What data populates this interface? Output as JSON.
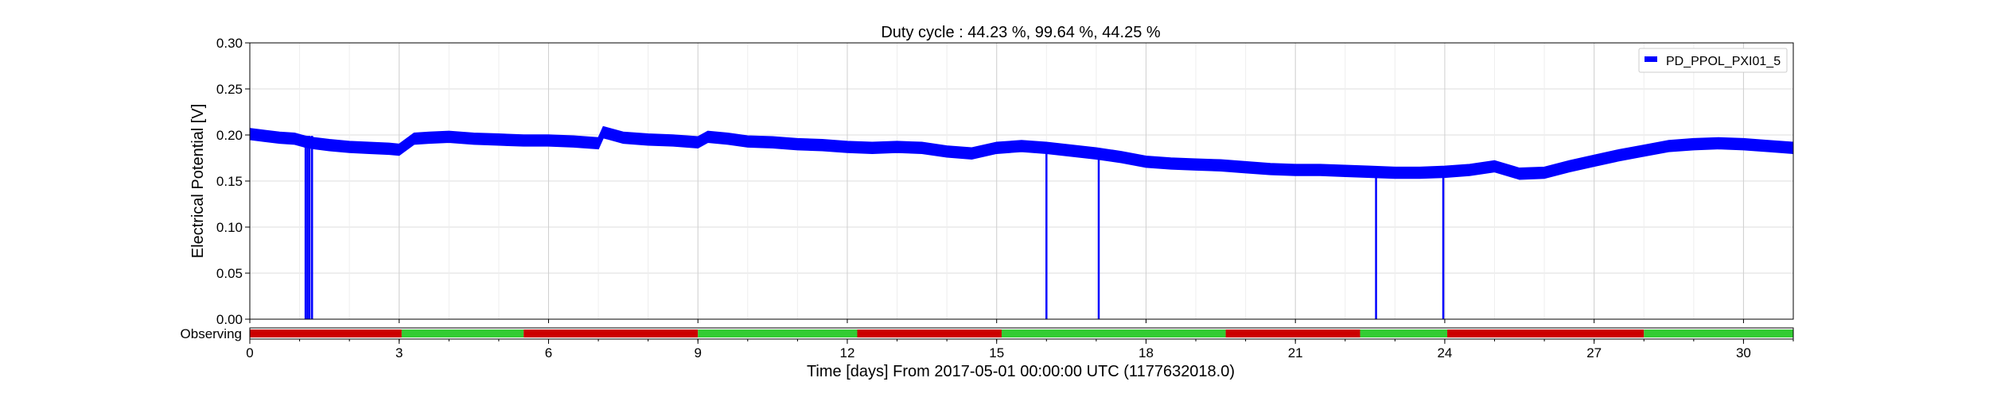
{
  "chart_data": {
    "type": "line",
    "title": "Duty cycle : 44.23 %, 99.64 %, 44.25 %",
    "xlabel": "Time [days] From 2017-05-01 00:00:00 UTC (1177632018.0)",
    "ylabel": "Electrical Potential [V]",
    "xlim": [
      0,
      31
    ],
    "ylim": [
      0,
      0.3
    ],
    "xticks": [
      "0",
      "3",
      "6",
      "9",
      "12",
      "15",
      "18",
      "21",
      "24",
      "27",
      "30"
    ],
    "yticks": [
      "0.00",
      "0.05",
      "0.10",
      "0.15",
      "0.20",
      "0.25",
      "0.30"
    ],
    "grid": true,
    "legend_position": "top-right",
    "series": [
      {
        "name": "PD_PPOL_PXI01_5",
        "color": "#0000ff",
        "band_width": 0.012,
        "x": [
          0,
          0.3,
          0.6,
          0.9,
          1.1,
          1.3,
          1.6,
          2.0,
          2.4,
          2.8,
          3.0,
          3.3,
          3.6,
          4.0,
          4.5,
          5.0,
          5.5,
          6.0,
          6.5,
          7.0,
          7.1,
          7.5,
          8.0,
          8.5,
          9.0,
          9.2,
          9.6,
          10.0,
          10.5,
          11.0,
          11.5,
          12.0,
          12.5,
          13.0,
          13.5,
          14.0,
          14.5,
          15.0,
          15.5,
          16.0,
          16.5,
          17.0,
          17.5,
          18.0,
          18.5,
          19.0,
          19.5,
          20.0,
          20.5,
          21.0,
          21.5,
          22.0,
          22.5,
          23.0,
          23.5,
          24.0,
          24.5,
          25.0,
          25.5,
          26.0,
          26.5,
          27.0,
          27.5,
          28.0,
          28.5,
          29.0,
          29.5,
          30.0,
          30.5,
          31.0
        ],
        "y": [
          0.201,
          0.199,
          0.197,
          0.196,
          0.193,
          0.191,
          0.189,
          0.187,
          0.186,
          0.185,
          0.184,
          0.196,
          0.197,
          0.198,
          0.196,
          0.195,
          0.194,
          0.194,
          0.193,
          0.191,
          0.203,
          0.197,
          0.195,
          0.194,
          0.192,
          0.198,
          0.196,
          0.193,
          0.192,
          0.19,
          0.189,
          0.187,
          0.186,
          0.187,
          0.186,
          0.182,
          0.18,
          0.186,
          0.188,
          0.186,
          0.183,
          0.18,
          0.176,
          0.171,
          0.169,
          0.168,
          0.167,
          0.165,
          0.163,
          0.162,
          0.162,
          0.161,
          0.16,
          0.159,
          0.159,
          0.16,
          0.162,
          0.166,
          0.158,
          0.159,
          0.166,
          0.172,
          0.178,
          0.183,
          0.188,
          0.19,
          0.191,
          0.19,
          0.188,
          0.186
        ],
        "dropouts": [
          1.12,
          1.16,
          1.2,
          1.25,
          16.0,
          17.05,
          22.62,
          23.97
        ]
      }
    ],
    "observing_segments": [
      {
        "start": 0.0,
        "end": 3.05,
        "state": "off"
      },
      {
        "start": 3.05,
        "end": 5.5,
        "state": "on"
      },
      {
        "start": 5.5,
        "end": 9.0,
        "state": "off"
      },
      {
        "start": 9.0,
        "end": 12.2,
        "state": "on"
      },
      {
        "start": 12.2,
        "end": 15.1,
        "state": "off"
      },
      {
        "start": 15.1,
        "end": 19.6,
        "state": "on"
      },
      {
        "start": 19.6,
        "end": 22.3,
        "state": "off"
      },
      {
        "start": 22.3,
        "end": 24.05,
        "state": "on"
      },
      {
        "start": 24.05,
        "end": 28.0,
        "state": "off"
      },
      {
        "start": 28.0,
        "end": 31.0,
        "state": "on"
      }
    ],
    "observing_label": "Observing",
    "observing_colors": {
      "on": "#33cc33",
      "off": "#cc0000",
      "marker": "#1f6b1f"
    }
  }
}
